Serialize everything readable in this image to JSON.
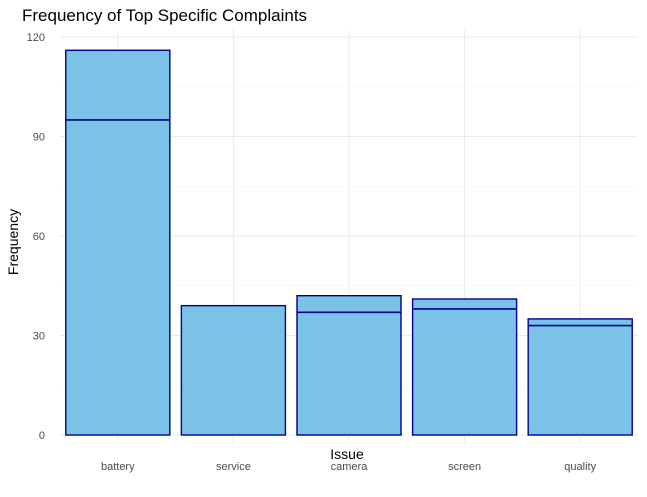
{
  "chart_data": {
    "type": "bar",
    "title": "Frequency of Top Specific Complaints",
    "xlabel": "Issue",
    "ylabel": "Frequency",
    "categories": [
      "battery",
      "service",
      "camera",
      "screen",
      "quality"
    ],
    "values": [
      116,
      39,
      42,
      41,
      35
    ],
    "segment_boundaries": [
      95,
      null,
      37,
      38,
      33
    ],
    "ylim": [
      0,
      120
    ],
    "yticks": [
      0,
      30,
      60,
      90,
      120
    ],
    "grid": true,
    "legend": "none",
    "colors": {
      "fill": "#7ac3e6",
      "stroke": "#00008b"
    }
  }
}
